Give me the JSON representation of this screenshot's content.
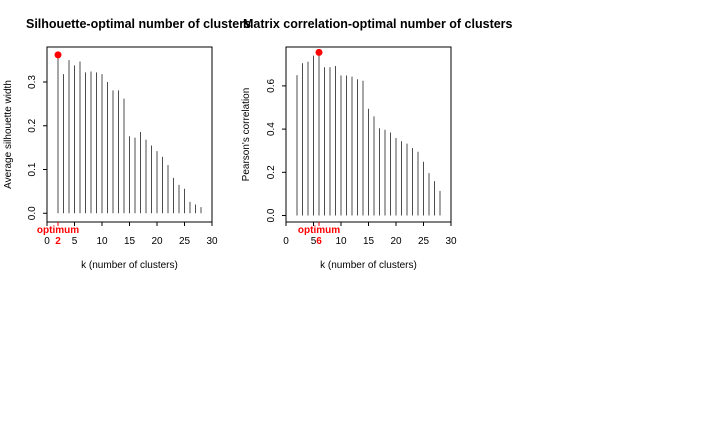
{
  "colors": {
    "optimum": "#ff0000",
    "bars": "#4d4d4d",
    "frame": "#000000"
  },
  "chart_data": [
    {
      "type": "bar",
      "title": "Silhouette-optimal number of clusters",
      "xlabel": "k (number of clusters)",
      "ylabel": "Average silhouette width",
      "xlim": [
        0,
        30
      ],
      "ylim": [
        -0.02,
        0.38
      ],
      "xticks": [
        0,
        5,
        10,
        15,
        20,
        25,
        30
      ],
      "yticks": [
        0.0,
        0.1,
        0.2,
        0.3
      ],
      "ytick_labels": [
        "0.0",
        "0.1",
        "0.2",
        "0.3"
      ],
      "x": [
        2,
        3,
        4,
        5,
        6,
        7,
        8,
        9,
        10,
        11,
        12,
        13,
        14,
        15,
        16,
        17,
        18,
        19,
        20,
        21,
        22,
        23,
        24,
        25,
        26,
        27,
        28
      ],
      "values": [
        0.362,
        0.318,
        0.35,
        0.338,
        0.347,
        0.322,
        0.324,
        0.322,
        0.318,
        0.3,
        0.281,
        0.281,
        0.262,
        0.176,
        0.173,
        0.186,
        0.168,
        0.155,
        0.142,
        0.129,
        0.11,
        0.081,
        0.065,
        0.056,
        0.026,
        0.02,
        0.014
      ],
      "optimum": {
        "k": 2,
        "value": 0.362,
        "label": "optimum",
        "k_label": "2"
      }
    },
    {
      "type": "bar",
      "title": "Matrix correlation-optimal number of clusters",
      "xlabel": "k (number of clusters)",
      "ylabel": "Pearson's correlation",
      "xlim": [
        0,
        30
      ],
      "ylim": [
        -0.03,
        0.78
      ],
      "xticks": [
        0,
        5,
        10,
        15,
        20,
        25,
        30
      ],
      "yticks": [
        0.0,
        0.2,
        0.4,
        0.6
      ],
      "ytick_labels": [
        "0.0",
        "0.2",
        "0.4",
        "0.6"
      ],
      "x": [
        2,
        3,
        4,
        5,
        6,
        7,
        8,
        9,
        10,
        11,
        12,
        13,
        14,
        15,
        16,
        17,
        18,
        19,
        20,
        21,
        22,
        23,
        24,
        25,
        26,
        27,
        28
      ],
      "values": [
        0.65,
        0.705,
        0.712,
        0.74,
        0.755,
        0.686,
        0.686,
        0.692,
        0.648,
        0.648,
        0.643,
        0.631,
        0.624,
        0.494,
        0.459,
        0.404,
        0.397,
        0.384,
        0.359,
        0.344,
        0.333,
        0.312,
        0.295,
        0.249,
        0.196,
        0.159,
        0.114
      ],
      "optimum": {
        "k": 6,
        "value": 0.755,
        "label": "optimum",
        "k_label": "6"
      }
    }
  ]
}
